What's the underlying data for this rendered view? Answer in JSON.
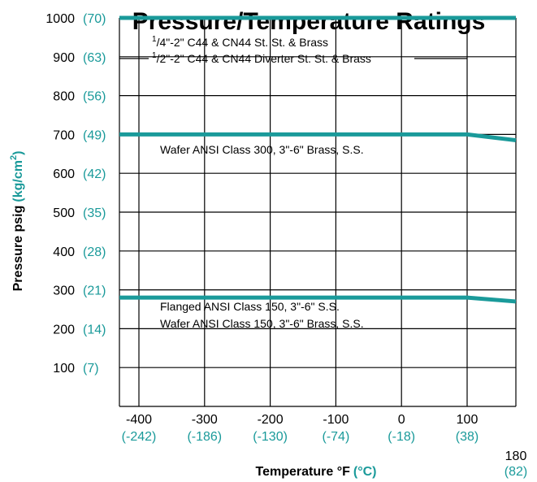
{
  "title": "Pressure/Temperature Ratings",
  "chart_data": {
    "type": "line",
    "title": "Pressure/Temperature Ratings",
    "xlabel": "Temperature °F",
    "xlabel_alt_unit": "(°C)",
    "ylabel": "Pressure psig",
    "ylabel_alt_unit": "(kg/cm",
    "ylabel_alt_unit_sup": "2",
    "ylabel_alt_unit_close": ")",
    "xlim": [
      -430,
      180
    ],
    "ylim": [
      0,
      1000
    ],
    "x_ticks": [
      {
        "f": "-400",
        "c": "(-242)",
        "value": -400
      },
      {
        "f": "-300",
        "c": "(-186)",
        "value": -300
      },
      {
        "f": "-200",
        "c": "(-130)",
        "value": -200
      },
      {
        "f": "-100",
        "c": "(-74)",
        "value": -100
      },
      {
        "f": "0",
        "c": "(-18)",
        "value": 0
      },
      {
        "f": "100",
        "c": "(38)",
        "value": 100
      },
      {
        "f": "180",
        "c": "(82)",
        "value": 180
      }
    ],
    "y_ticks": [
      {
        "psig": "100",
        "kg": "(7)",
        "value": 100
      },
      {
        "psig": "200",
        "kg": "(14)",
        "value": 200
      },
      {
        "psig": "300",
        "kg": "(21)",
        "value": 300
      },
      {
        "psig": "400",
        "kg": "(28)",
        "value": 400
      },
      {
        "psig": "500",
        "kg": "(35)",
        "value": 500
      },
      {
        "psig": "600",
        "kg": "(42)",
        "value": 600
      },
      {
        "psig": "700",
        "kg": "(49)",
        "value": 700
      },
      {
        "psig": "800",
        "kg": "(56)",
        "value": 800
      },
      {
        "psig": "900",
        "kg": "(63)",
        "value": 900
      },
      {
        "psig": "1000",
        "kg": "(70)",
        "value": 1000
      }
    ],
    "grid": true,
    "series_color": "#1a9a9a",
    "series": [
      {
        "x": [
          -430,
          180
        ],
        "y": [
          1000,
          1000
        ]
      },
      {
        "x": [
          -430,
          100,
          180
        ],
        "y": [
          700,
          700,
          685
        ]
      },
      {
        "x": [
          -430,
          100,
          180
        ],
        "y": [
          280,
          280,
          270
        ]
      }
    ],
    "annotations": [
      {
        "pre": "1",
        "pre_sub": "4",
        "text": "\"-2\" C44 & CN44 St. St. & Brass"
      },
      {
        "pre": "1",
        "pre_sub": "2",
        "text": "\"-2\" C44 & CN44 Diverter St. St. & Brass"
      },
      {
        "text": "Wafer ANSI Class 300, 3\"-6\" Brass, S.S."
      },
      {
        "text": "Flanged ANSI Class 150, 3\"-6\" S.S."
      },
      {
        "text": "Wafer ANSI Class 150, 3\"-6\" Brass, S.S."
      }
    ]
  }
}
